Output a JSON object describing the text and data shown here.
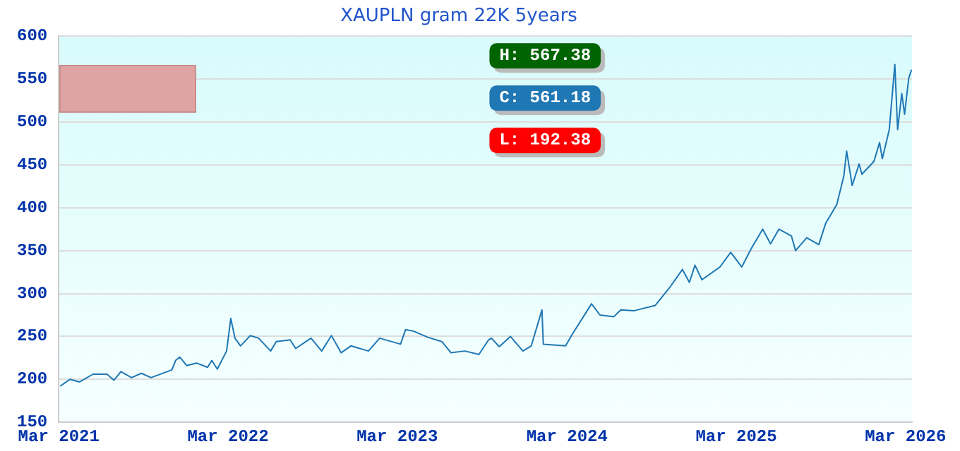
{
  "chart_data": {
    "type": "line",
    "title": "XAUPLN gram 22K 5years",
    "x": [
      "2021-03-04",
      "2021-03-25",
      "2021-04-15",
      "2021-05-14",
      "2021-06-13",
      "2021-06-28",
      "2021-07-13",
      "2021-08-05",
      "2021-08-26",
      "2021-09-16",
      "2021-10-31",
      "2021-11-08",
      "2021-11-17",
      "2021-12-02",
      "2021-12-23",
      "2022-01-16",
      "2022-01-25",
      "2022-02-06",
      "2022-02-26",
      "2022-03-07",
      "2022-03-16",
      "2022-03-28",
      "2022-04-18",
      "2022-05-06",
      "2022-06-01",
      "2022-06-13",
      "2022-07-13",
      "2022-07-25",
      "2022-08-27",
      "2022-09-19",
      "2022-10-10",
      "2022-10-31",
      "2022-11-21",
      "2022-12-29",
      "2023-01-22",
      "2023-03-08",
      "2023-03-19",
      "2023-04-06",
      "2023-05-06",
      "2023-06-05",
      "2023-06-25",
      "2023-07-25",
      "2023-08-24",
      "2023-09-14",
      "2023-09-20",
      "2023-10-07",
      "2023-10-31",
      "2023-11-27",
      "2023-12-15",
      "2024-01-07",
      "2024-01-10",
      "2024-02-27",
      "2024-03-13",
      "2024-04-23",
      "2024-05-11",
      "2024-06-10",
      "2024-06-25",
      "2024-07-24",
      "2024-09-07",
      "2024-10-07",
      "2024-11-05",
      "2024-11-20",
      "2024-12-02",
      "2024-12-17",
      "2025-01-25",
      "2025-02-17",
      "2025-03-13",
      "2025-04-03",
      "2025-04-27",
      "2025-05-14",
      "2025-06-01",
      "2025-06-28",
      "2025-07-07",
      "2025-07-31",
      "2025-08-26",
      "2025-09-10",
      "2025-10-04",
      "2025-10-19",
      "2025-10-25",
      "2025-11-06",
      "2025-11-21",
      "2025-11-27",
      "2025-12-23",
      "2026-01-04",
      "2026-01-10",
      "2026-01-25",
      "2026-02-06",
      "2026-02-12",
      "2026-02-21",
      "2026-02-27",
      "2026-03-08",
      "2026-03-14"
    ],
    "series": [
      {
        "color": "#1f77b4",
        "values": [
          192,
          200,
          197,
          206,
          206,
          199,
          209,
          202,
          207,
          202,
          211,
          222,
          226,
          216,
          219,
          214,
          222,
          212,
          233,
          271,
          248,
          239,
          251,
          248,
          233,
          244,
          246,
          236,
          248,
          233,
          251,
          231,
          239,
          233,
          248,
          241,
          258,
          256,
          249,
          244,
          231,
          233,
          229,
          246,
          248,
          238,
          250,
          233,
          239,
          281,
          241,
          239,
          253,
          288,
          275,
          273,
          281,
          280,
          286,
          306,
          328,
          313,
          333,
          316,
          331,
          348,
          331,
          353,
          375,
          358,
          375,
          367,
          350,
          365,
          357,
          382,
          404,
          437,
          466,
          426,
          451,
          439,
          454,
          476,
          457,
          491,
          567,
          491,
          533,
          509,
          551,
          561
        ]
      }
    ],
    "xlim": [
      "2021-03-01",
      "2026-03-15"
    ],
    "xticks": [
      {
        "value": "2021-03-01",
        "label": "Mar 2021"
      },
      {
        "value": "2022-03-01",
        "label": "Mar 2022"
      },
      {
        "value": "2023-03-01",
        "label": "Mar 2023"
      },
      {
        "value": "2024-03-01",
        "label": "Mar 2024"
      },
      {
        "value": "2025-03-01",
        "label": "Mar 2025"
      },
      {
        "value": "2026-03-01",
        "label": "Mar 2026"
      }
    ],
    "ylim": [
      150,
      600
    ],
    "yticks": [
      150,
      200,
      250,
      300,
      350,
      400,
      450,
      500,
      550,
      600
    ],
    "grid": "y",
    "marker": "none",
    "line_style": "solid",
    "legend": false,
    "annotations": [
      "H: 567.38",
      "C: 561.18",
      "L: 192.38"
    ]
  }
}
